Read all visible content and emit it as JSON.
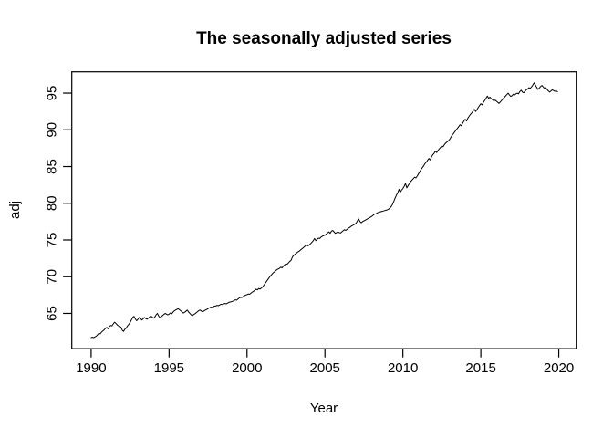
{
  "chart_data": {
    "type": "line",
    "title": "The seasonally adjusted series",
    "xlabel": "Year",
    "ylabel": "adj",
    "x_ticks": [
      1990,
      1995,
      2000,
      2005,
      2010,
      2015,
      2020
    ],
    "y_ticks": [
      65,
      70,
      75,
      80,
      85,
      90,
      95
    ],
    "xlim": [
      1988.76,
      2021.12
    ],
    "ylim": [
      60.2,
      97.9
    ],
    "grid": false,
    "legend_position": "none",
    "line_color": "#000000",
    "background_color": "#ffffff",
    "series": [
      {
        "name": "adj",
        "start_year": 1990,
        "frequency": 12,
        "values": [
          61.7,
          61.75,
          61.7,
          61.8,
          61.9,
          62.1,
          62.3,
          62.2,
          62.45,
          62.6,
          62.75,
          62.95,
          63.1,
          62.9,
          63.2,
          63.35,
          63.3,
          63.55,
          63.8,
          63.65,
          63.45,
          63.3,
          63.25,
          63.1,
          62.7,
          62.55,
          62.85,
          63.0,
          63.3,
          63.5,
          63.75,
          64.1,
          64.45,
          64.6,
          64.25,
          64.0,
          64.2,
          64.45,
          64.3,
          64.1,
          64.25,
          64.45,
          64.3,
          64.2,
          64.35,
          64.5,
          64.65,
          64.5,
          64.35,
          64.5,
          64.8,
          65.0,
          64.65,
          64.4,
          64.55,
          64.7,
          64.85,
          65.0,
          64.9,
          64.8,
          64.9,
          65.05,
          64.95,
          65.15,
          65.35,
          65.45,
          65.55,
          65.65,
          65.5,
          65.35,
          65.2,
          65.05,
          65.15,
          65.3,
          65.45,
          65.2,
          65.0,
          64.8,
          64.7,
          64.85,
          64.95,
          65.1,
          65.25,
          65.4,
          65.45,
          65.3,
          65.2,
          65.35,
          65.45,
          65.55,
          65.65,
          65.75,
          65.85,
          65.8,
          65.9,
          66.0,
          66.0,
          66.1,
          66.05,
          66.15,
          66.25,
          66.2,
          66.3,
          66.35,
          66.3,
          66.4,
          66.5,
          66.55,
          66.6,
          66.65,
          66.75,
          66.85,
          66.8,
          66.95,
          67.1,
          67.2,
          67.15,
          67.3,
          67.4,
          67.5,
          67.55,
          67.65,
          67.6,
          67.75,
          67.9,
          68.0,
          68.15,
          68.3,
          68.2,
          68.4,
          68.3,
          68.45,
          68.6,
          68.85,
          69.1,
          69.35,
          69.6,
          69.85,
          70.1,
          70.3,
          70.5,
          70.65,
          70.8,
          70.95,
          71.05,
          71.15,
          71.3,
          71.2,
          71.45,
          71.6,
          71.75,
          71.7,
          71.9,
          72.1,
          72.25,
          72.7,
          72.9,
          73.05,
          73.2,
          73.35,
          73.45,
          73.6,
          73.75,
          73.9,
          74.05,
          74.2,
          74.3,
          74.2,
          74.35,
          74.5,
          74.7,
          74.9,
          75.2,
          74.9,
          75.1,
          75.25,
          75.2,
          75.4,
          75.5,
          75.6,
          75.65,
          75.8,
          75.95,
          76.1,
          75.9,
          76.2,
          76.3,
          76.1,
          75.9,
          76.0,
          76.1,
          76.0,
          75.95,
          76.1,
          76.25,
          76.4,
          76.3,
          76.45,
          76.6,
          76.7,
          76.85,
          76.95,
          77.05,
          77.15,
          77.3,
          77.6,
          77.85,
          77.5,
          77.35,
          77.5,
          77.6,
          77.7,
          77.8,
          77.9,
          78.0,
          78.1,
          78.2,
          78.35,
          78.5,
          78.55,
          78.65,
          78.75,
          78.8,
          78.85,
          78.9,
          78.95,
          79.0,
          79.05,
          79.1,
          79.2,
          79.35,
          79.55,
          79.85,
          80.25,
          80.7,
          81.1,
          81.4,
          81.9,
          81.5,
          81.8,
          82.0,
          82.3,
          82.7,
          82.1,
          82.4,
          82.7,
          82.95,
          83.15,
          83.35,
          83.55,
          83.45,
          83.7,
          84.0,
          84.3,
          84.6,
          84.85,
          85.1,
          85.4,
          85.6,
          85.85,
          86.1,
          85.9,
          86.3,
          86.6,
          86.8,
          87.1,
          86.9,
          87.2,
          87.4,
          87.6,
          87.8,
          87.7,
          88.0,
          88.2,
          88.35,
          88.5,
          88.7,
          89.0,
          89.3,
          89.5,
          89.75,
          90.0,
          90.2,
          90.45,
          90.7,
          90.55,
          90.9,
          91.2,
          91.45,
          91.2,
          91.6,
          91.85,
          92.1,
          92.3,
          92.55,
          92.8,
          92.5,
          92.75,
          93.05,
          93.3,
          93.55,
          93.4,
          93.75,
          94.0,
          94.3,
          94.6,
          94.3,
          94.45,
          94.25,
          94.1,
          93.95,
          94.05,
          93.9,
          93.75,
          93.6,
          93.8,
          94.0,
          94.2,
          94.4,
          94.6,
          94.8,
          95.0,
          94.75,
          94.55,
          94.65,
          94.85,
          94.75,
          94.9,
          95.0,
          94.9,
          95.2,
          95.4,
          95.15,
          95.05,
          95.25,
          95.45,
          95.55,
          95.75,
          95.65,
          95.85,
          96.1,
          96.4,
          96.1,
          95.8,
          95.5,
          95.7,
          95.9,
          96.05,
          95.85,
          95.65,
          95.75,
          95.5,
          95.3,
          95.15,
          95.3,
          95.45,
          95.35,
          95.25,
          95.3,
          95.2
        ]
      }
    ]
  }
}
